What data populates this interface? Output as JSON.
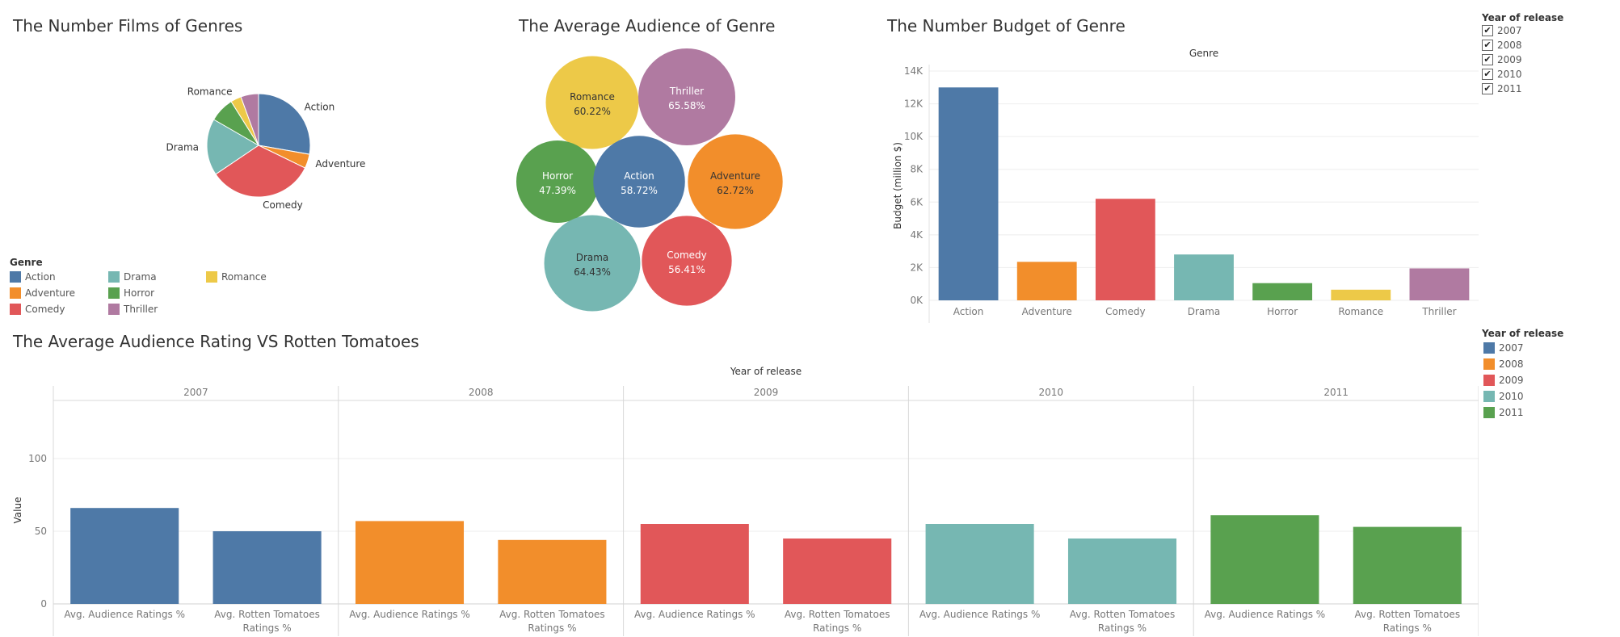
{
  "colors": {
    "Action": "#4e79a7",
    "Adventure": "#f28e2b",
    "Comedy": "#e15759",
    "Drama": "#76b7b2",
    "Horror": "#59a14f",
    "Romance": "#edc948",
    "Thriller": "#b07aa1"
  },
  "year_colors": {
    "2007": "#4e79a7",
    "2008": "#f28e2b",
    "2009": "#e15759",
    "2010": "#76b7b2",
    "2011": "#59a14f"
  },
  "titles": {
    "pie": "The Number Films of Genres",
    "bubble": "The Average Audience of Genre",
    "budget": "The Number Budget of Genre",
    "ratings": "The Average Audience Rating VS Rotten Tomatoes"
  },
  "genre_legend": {
    "title": "Genre",
    "items": [
      "Action",
      "Adventure",
      "Comedy",
      "Drama",
      "Horror",
      "Thriller",
      "Romance"
    ]
  },
  "year_filter": {
    "title": "Year of release",
    "items": [
      {
        "label": "2007",
        "checked": true
      },
      {
        "label": "2008",
        "checked": true
      },
      {
        "label": "2009",
        "checked": true
      },
      {
        "label": "2010",
        "checked": true
      },
      {
        "label": "2011",
        "checked": true
      }
    ]
  },
  "year_legend": {
    "title": "Year of release",
    "items": [
      "2007",
      "2008",
      "2009",
      "2010",
      "2011"
    ]
  },
  "chart_data": [
    {
      "type": "pie",
      "title": "The Number Films of Genres",
      "categories": [
        "Action",
        "Adventure",
        "Comedy",
        "Drama",
        "Horror",
        "Romance",
        "Thriller"
      ],
      "values": [
        25,
        4,
        30,
        16,
        7,
        3,
        5
      ],
      "labels_shown": [
        "Action",
        "Adventure",
        "Comedy",
        "Drama",
        "Romance"
      ]
    },
    {
      "type": "bubble",
      "title": "The Average Audience of Genre",
      "categories": [
        "Romance",
        "Thriller",
        "Horror",
        "Action",
        "Adventure",
        "Drama",
        "Comedy"
      ],
      "values": [
        60.22,
        65.58,
        47.39,
        58.72,
        62.72,
        64.43,
        56.41
      ],
      "labels": [
        "60.22%",
        "65.58%",
        "47.39%",
        "58.72%",
        "62.72%",
        "64.43%",
        "56.41%"
      ]
    },
    {
      "type": "bar",
      "title": "The Number Budget of Genre",
      "top_header": "Genre",
      "ylabel": "Budget (million $)",
      "categories": [
        "Action",
        "Adventure",
        "Comedy",
        "Drama",
        "Horror",
        "Romance",
        "Thriller"
      ],
      "values": [
        13000,
        2350,
        6200,
        2800,
        1050,
        650,
        1950
      ],
      "ylim": [
        0,
        14000
      ],
      "yticks": [
        0,
        2000,
        4000,
        6000,
        8000,
        10000,
        12000,
        14000
      ],
      "ytick_labels": [
        "0K",
        "2K",
        "4K",
        "6K",
        "8K",
        "10K",
        "12K",
        "14K"
      ]
    },
    {
      "type": "bar",
      "title": "The Average Audience Rating VS Rotten Tomatoes",
      "top_header": "Year of release",
      "ylabel": "Value",
      "panels": [
        "2007",
        "2008",
        "2009",
        "2010",
        "2011"
      ],
      "categories": [
        "Avg. Audience Ratings %",
        "Avg. Rotten Tomatoes Ratings %"
      ],
      "category_lines": [
        [
          "Avg. Audience Ratings %"
        ],
        [
          "Avg. Rotten Tomatoes",
          "Ratings %"
        ]
      ],
      "series": [
        {
          "name": "2007",
          "values": [
            66,
            50
          ]
        },
        {
          "name": "2008",
          "values": [
            57,
            44
          ]
        },
        {
          "name": "2009",
          "values": [
            55,
            45
          ]
        },
        {
          "name": "2010",
          "values": [
            55,
            45
          ]
        },
        {
          "name": "2011",
          "values": [
            61,
            53
          ]
        }
      ],
      "ylim": [
        0,
        140
      ],
      "yticks": [
        0,
        50,
        100
      ]
    }
  ]
}
